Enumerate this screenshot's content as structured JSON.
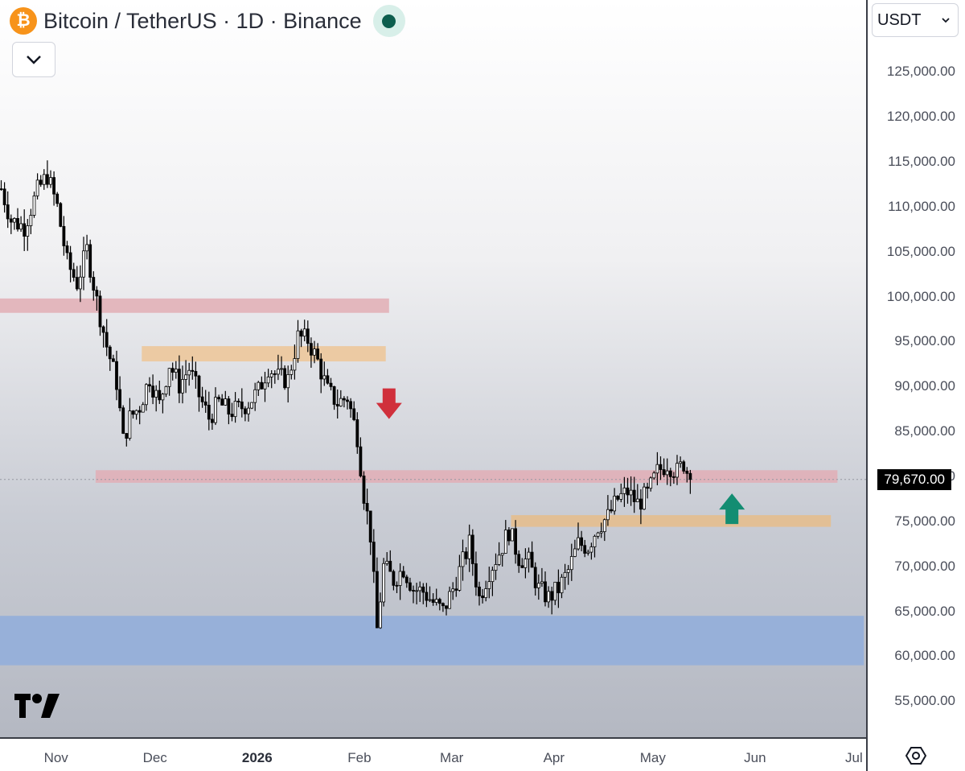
{
  "header": {
    "title": "Bitcoin / TetherUS · 1D · Binance",
    "logo_glyph": "₿",
    "logo_color": "#f7931a",
    "status_color": "#0d5e4e"
  },
  "currency": {
    "selected": "USDT"
  },
  "chart_data": {
    "type": "candlestick",
    "symbol": "BTC/USDT",
    "interval": "1D",
    "exchange": "Binance",
    "ylim": [
      51000,
      133000
    ],
    "y_ticks": [
      55000,
      60000,
      65000,
      70000,
      75000,
      80000,
      85000,
      90000,
      95000,
      100000,
      105000,
      110000,
      115000,
      120000,
      125000
    ],
    "y_tick_labels": [
      "55,000.00",
      "60,000.00",
      "65,000.00",
      "70,000.00",
      "75,000.00",
      "80,000.00",
      "85,000.00",
      "90,000.00",
      "95,000.00",
      "100,000.00",
      "105,000.00",
      "110,000.00",
      "115,000.00",
      "120,000.00",
      "125,000.00"
    ],
    "x_start": "2025-10-15",
    "x_labels": [
      {
        "date": "2025-11-01",
        "label": "Nov",
        "bold": false
      },
      {
        "date": "2025-12-01",
        "label": "Dec",
        "bold": false
      },
      {
        "date": "2026-01-01",
        "label": "2026",
        "bold": true
      },
      {
        "date": "2026-02-01",
        "label": "Feb",
        "bold": false
      },
      {
        "date": "2026-03-01",
        "label": "Mar",
        "bold": false
      },
      {
        "date": "2026-04-01",
        "label": "Apr",
        "bold": false
      },
      {
        "date": "2026-05-01",
        "label": "May",
        "bold": false
      },
      {
        "date": "2026-06-01",
        "label": "Jun",
        "bold": false
      },
      {
        "date": "2026-07-01",
        "label": "Jul",
        "bold": false
      }
    ],
    "last_price": 79670,
    "last_price_label": "79,670.00",
    "closes": [
      {
        "date": "2025-10-15",
        "close": 112000
      },
      {
        "date": "2025-10-18",
        "close": 108500
      },
      {
        "date": "2025-10-22",
        "close": 107800
      },
      {
        "date": "2025-10-26",
        "close": 111800
      },
      {
        "date": "2025-10-29",
        "close": 113500
      },
      {
        "date": "2025-11-01",
        "close": 110000
      },
      {
        "date": "2025-11-04",
        "close": 103800
      },
      {
        "date": "2025-11-07",
        "close": 101500
      },
      {
        "date": "2025-11-10",
        "close": 105200
      },
      {
        "date": "2025-11-13",
        "close": 99500
      },
      {
        "date": "2025-11-16",
        "close": 94500
      },
      {
        "date": "2025-11-19",
        "close": 90500
      },
      {
        "date": "2025-11-21",
        "close": 84000
      },
      {
        "date": "2025-11-23",
        "close": 86500
      },
      {
        "date": "2025-11-26",
        "close": 87800
      },
      {
        "date": "2025-11-29",
        "close": 91000
      },
      {
        "date": "2025-12-02",
        "close": 88000
      },
      {
        "date": "2025-12-05",
        "close": 92500
      },
      {
        "date": "2025-12-08",
        "close": 90200
      },
      {
        "date": "2025-12-11",
        "close": 92000
      },
      {
        "date": "2025-12-14",
        "close": 89000
      },
      {
        "date": "2025-12-17",
        "close": 86500
      },
      {
        "date": "2025-12-20",
        "close": 88200
      },
      {
        "date": "2025-12-23",
        "close": 87200
      },
      {
        "date": "2025-12-26",
        "close": 87500
      },
      {
        "date": "2025-12-29",
        "close": 88200
      },
      {
        "date": "2026-01-01",
        "close": 89500
      },
      {
        "date": "2026-01-04",
        "close": 92200
      },
      {
        "date": "2026-01-07",
        "close": 91000
      },
      {
        "date": "2026-01-10",
        "close": 90800
      },
      {
        "date": "2026-01-13",
        "close": 95500
      },
      {
        "date": "2026-01-16",
        "close": 95200
      },
      {
        "date": "2026-01-19",
        "close": 92800
      },
      {
        "date": "2026-01-22",
        "close": 89500
      },
      {
        "date": "2026-01-25",
        "close": 88200
      },
      {
        "date": "2026-01-28",
        "close": 88800
      },
      {
        "date": "2026-01-31",
        "close": 84500
      },
      {
        "date": "2026-02-02",
        "close": 78000
      },
      {
        "date": "2026-02-04",
        "close": 73500
      },
      {
        "date": "2026-02-06",
        "close": 63000
      },
      {
        "date": "2026-02-08",
        "close": 70000
      },
      {
        "date": "2026-02-11",
        "close": 68500
      },
      {
        "date": "2026-02-14",
        "close": 69800
      },
      {
        "date": "2026-02-17",
        "close": 67500
      },
      {
        "date": "2026-02-20",
        "close": 67200
      },
      {
        "date": "2026-02-23",
        "close": 66000
      },
      {
        "date": "2026-02-26",
        "close": 65000
      },
      {
        "date": "2026-03-01",
        "close": 67500
      },
      {
        "date": "2026-03-04",
        "close": 70500
      },
      {
        "date": "2026-03-06",
        "close": 72500
      },
      {
        "date": "2026-03-09",
        "close": 66500
      },
      {
        "date": "2026-03-12",
        "close": 69500
      },
      {
        "date": "2026-03-15",
        "close": 71500
      },
      {
        "date": "2026-03-18",
        "close": 74000
      },
      {
        "date": "2026-03-21",
        "close": 71000
      },
      {
        "date": "2026-03-24",
        "close": 70500
      },
      {
        "date": "2026-03-27",
        "close": 67500
      },
      {
        "date": "2026-03-30",
        "close": 66500
      },
      {
        "date": "2026-04-02",
        "close": 67500
      },
      {
        "date": "2026-04-05",
        "close": 69500
      },
      {
        "date": "2026-04-08",
        "close": 72500
      },
      {
        "date": "2026-04-11",
        "close": 72200
      },
      {
        "date": "2026-04-14",
        "close": 74500
      },
      {
        "date": "2026-04-17",
        "close": 75500
      },
      {
        "date": "2026-04-20",
        "close": 77500
      },
      {
        "date": "2026-04-23",
        "close": 78300
      },
      {
        "date": "2026-04-26",
        "close": 77000
      },
      {
        "date": "2026-04-29",
        "close": 78000
      },
      {
        "date": "2026-05-02",
        "close": 80500
      },
      {
        "date": "2026-05-05",
        "close": 81500
      },
      {
        "date": "2026-05-08",
        "close": 80500
      },
      {
        "date": "2026-05-10",
        "close": 81500
      },
      {
        "date": "2026-05-12",
        "close": 79670
      }
    ],
    "zones": [
      {
        "kind": "resistance",
        "color": "#e3b7bd",
        "price_top": 99800,
        "price_bottom": 98200,
        "start": "2025-10-15",
        "end": "2026-02-10"
      },
      {
        "kind": "resistance",
        "color": "#eccaa3",
        "price_top": 94500,
        "price_bottom": 92800,
        "start": "2025-11-27",
        "end": "2026-02-09"
      },
      {
        "kind": "resistance",
        "color": "#dfb3bb",
        "price_top": 80700,
        "price_bottom": 79300,
        "start": "2025-11-13",
        "end": "2026-06-26"
      },
      {
        "kind": "support",
        "color": "#e2bf95",
        "price_top": 75700,
        "price_bottom": 74400,
        "start": "2026-03-19",
        "end": "2026-06-24"
      },
      {
        "kind": "support",
        "color": "#97b0d9",
        "price_top": 64500,
        "price_bottom": 59000,
        "start": "2025-10-15",
        "end": "2026-07-04"
      }
    ],
    "arrows": [
      {
        "direction": "down",
        "color": "#d0303c",
        "date": "2026-02-10",
        "price": 88000
      },
      {
        "direction": "up",
        "color": "#138d72",
        "date": "2026-05-25",
        "price": 76500
      }
    ]
  }
}
